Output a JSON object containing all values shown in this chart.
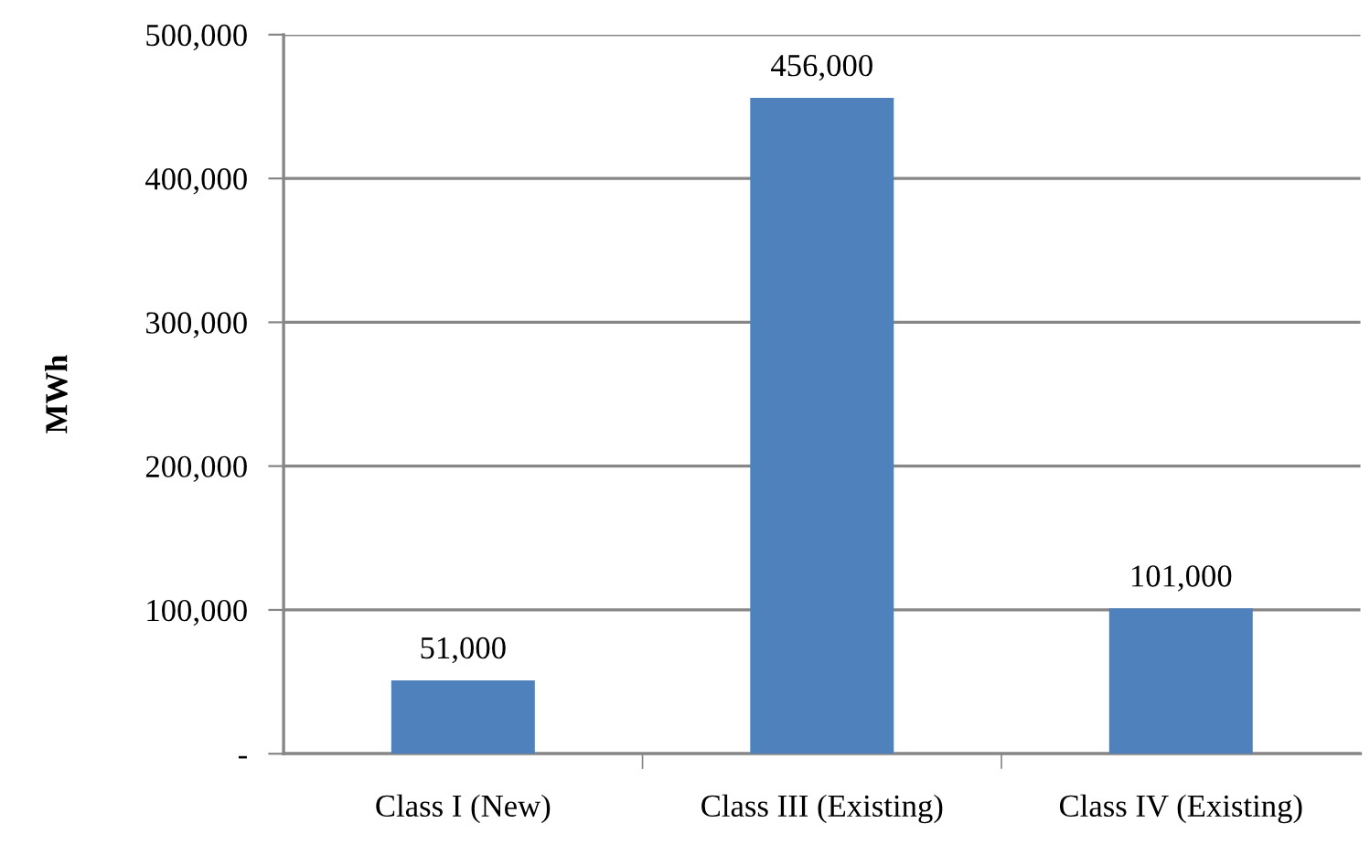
{
  "chart_data": {
    "type": "bar",
    "ylabel": "MWh",
    "categories": [
      "Class I (New)",
      "Class III (Existing)",
      "Class IV (Existing)"
    ],
    "values": [
      51000,
      456000,
      101000
    ],
    "value_labels": [
      "51,000",
      "456,000",
      "101,000"
    ],
    "color": "#4f81bd",
    "ylim": [
      0,
      500000
    ],
    "yticks": [
      {
        "value": 0,
        "label": "-"
      },
      {
        "value": 100000,
        "label": "100,000"
      },
      {
        "value": 200000,
        "label": "200,000"
      },
      {
        "value": 300000,
        "label": "300,000"
      },
      {
        "value": 400000,
        "label": "400,000"
      },
      {
        "value": 500000,
        "label": "500,000"
      }
    ],
    "grid": "y",
    "legend": false
  }
}
